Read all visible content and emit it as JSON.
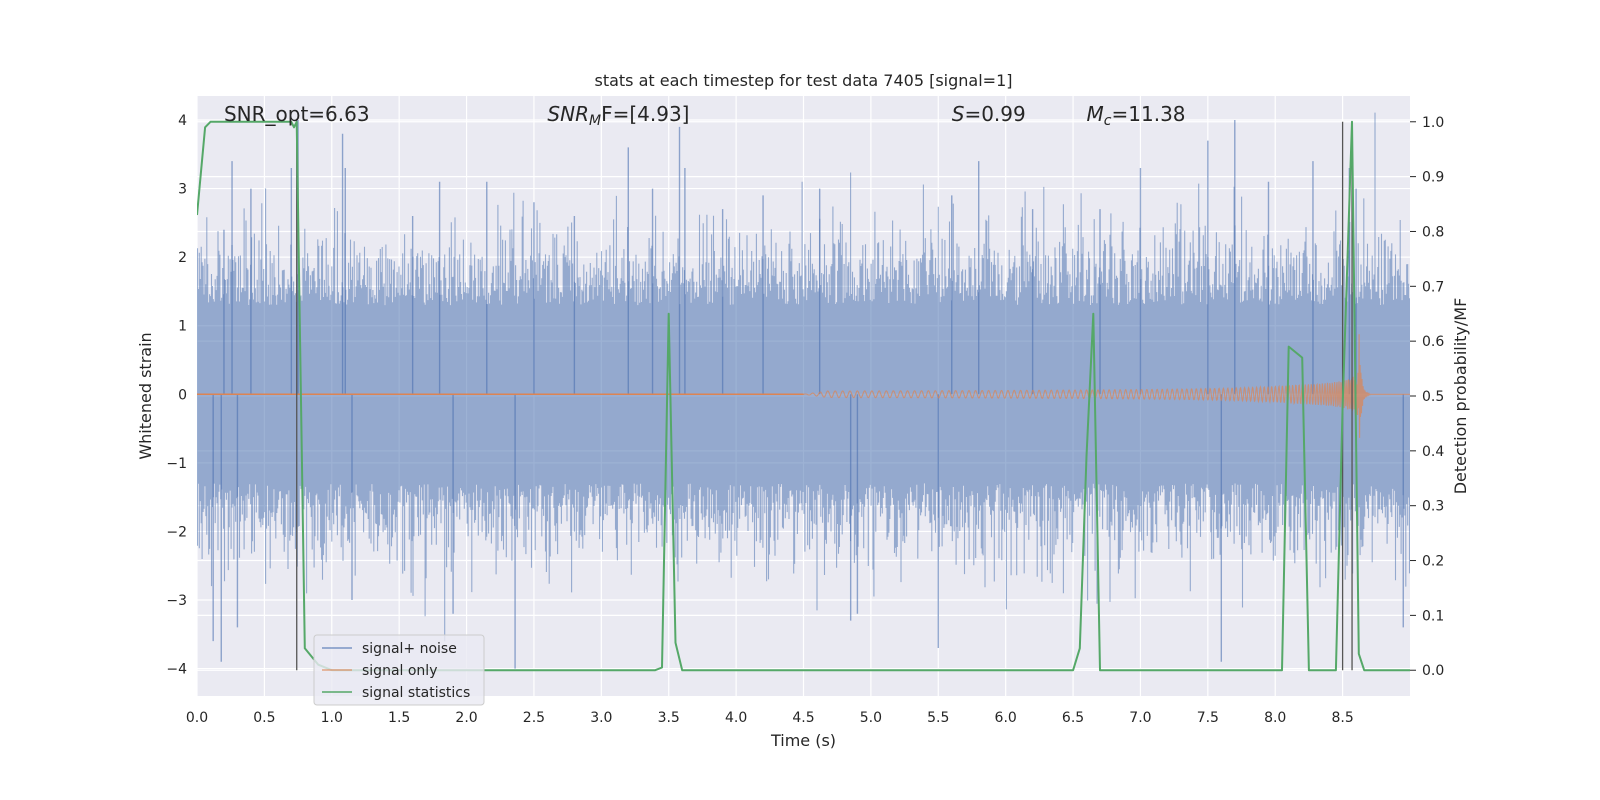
{
  "chart_data": {
    "type": "line",
    "title": "stats at each timestep for test data 7405 [signal=1]",
    "xlabel": "Time (s)",
    "ylabel": "Whitened strain",
    "y2label": "Detection probability/MF",
    "xlim": [
      0,
      9.0
    ],
    "ylim": [
      -4.4,
      4.35
    ],
    "y2lim": [
      -0.047,
      1.047
    ],
    "grid": true,
    "legend_position": "lower-left",
    "x_ticks": [
      "0.0",
      "0.5",
      "1.0",
      "1.5",
      "2.0",
      "2.5",
      "3.0",
      "3.5",
      "4.0",
      "4.5",
      "5.0",
      "5.5",
      "6.0",
      "6.5",
      "7.0",
      "7.5",
      "8.0",
      "8.5"
    ],
    "x_tick_values": [
      0,
      0.5,
      1,
      1.5,
      2,
      2.5,
      3,
      3.5,
      4,
      4.5,
      5,
      5.5,
      6,
      6.5,
      7,
      7.5,
      8,
      8.5
    ],
    "y_ticks": [
      "−4",
      "−3",
      "−2",
      "−1",
      "0",
      "1",
      "2",
      "3",
      "4"
    ],
    "y_tick_values": [
      -4,
      -3,
      -2,
      -1,
      0,
      1,
      2,
      3,
      4
    ],
    "y2_ticks": [
      "0.0",
      "0.1",
      "0.2",
      "0.3",
      "0.4",
      "0.5",
      "0.6",
      "0.7",
      "0.8",
      "0.9",
      "1.0"
    ],
    "y2_tick_values": [
      0,
      0.1,
      0.2,
      0.3,
      0.4,
      0.5,
      0.6,
      0.7,
      0.8,
      0.9,
      1.0
    ],
    "annotations": [
      {
        "id": "snr-opt",
        "x": 0.2,
        "text": "SNR_opt=6.63"
      },
      {
        "id": "snr-mf",
        "x": 2.6,
        "text_main": "SNR",
        "text_sub": "M",
        "text_rest": "F=[4.93]"
      },
      {
        "id": "s",
        "x": 5.6,
        "text_main": "S",
        "text_rest": "=0.99"
      },
      {
        "id": "mc",
        "x": 6.6,
        "text_main": "M",
        "text_sub": "c",
        "text_rest": "=11.38"
      }
    ],
    "vlines": [
      0.74,
      8.5,
      8.57
    ],
    "vline_y2_range": [
      0,
      1.0
    ],
    "series": [
      {
        "name": "signal+ noise",
        "color": "#4c72b0",
        "axis": "left",
        "kind": "noise",
        "peaks": [
          {
            "x": 0.12,
            "y": -3.6
          },
          {
            "x": 0.18,
            "y": -3.9
          },
          {
            "x": 0.2,
            "y": 2.4
          },
          {
            "x": 0.26,
            "y": 3.4
          },
          {
            "x": 0.3,
            "y": -3.4
          },
          {
            "x": 0.4,
            "y": 3.0
          },
          {
            "x": 0.7,
            "y": 3.3
          },
          {
            "x": 0.75,
            "y": 4.0
          },
          {
            "x": 1.08,
            "y": 3.8
          },
          {
            "x": 1.1,
            "y": 3.3
          },
          {
            "x": 1.15,
            "y": -3.0
          },
          {
            "x": 1.6,
            "y": 2.6
          },
          {
            "x": 1.8,
            "y": 3.1
          },
          {
            "x": 1.9,
            "y": -3.2
          },
          {
            "x": 2.15,
            "y": 3.1
          },
          {
            "x": 2.36,
            "y": -4.0
          },
          {
            "x": 2.5,
            "y": 2.8
          },
          {
            "x": 2.8,
            "y": 2.6
          },
          {
            "x": 3.2,
            "y": 3.6
          },
          {
            "x": 3.38,
            "y": 3.0
          },
          {
            "x": 3.58,
            "y": 3.9
          },
          {
            "x": 3.62,
            "y": 3.3
          },
          {
            "x": 3.9,
            "y": 2.7
          },
          {
            "x": 4.2,
            "y": 2.9
          },
          {
            "x": 4.62,
            "y": 3.0
          },
          {
            "x": 4.85,
            "y": -3.3
          },
          {
            "x": 4.9,
            "y": -3.2
          },
          {
            "x": 5.5,
            "y": -3.7
          },
          {
            "x": 5.6,
            "y": 2.9
          },
          {
            "x": 5.8,
            "y": 3.4
          },
          {
            "x": 6.2,
            "y": 2.7
          },
          {
            "x": 6.7,
            "y": 2.7
          },
          {
            "x": 7.0,
            "y": 3.3
          },
          {
            "x": 7.5,
            "y": 3.7
          },
          {
            "x": 7.6,
            "y": -3.9
          },
          {
            "x": 7.7,
            "y": 4.0
          },
          {
            "x": 7.95,
            "y": 3.1
          },
          {
            "x": 8.28,
            "y": 3.4
          },
          {
            "x": 8.55,
            "y": 3.3
          },
          {
            "x": 8.6,
            "y": 3.0
          },
          {
            "x": 8.95,
            "y": -3.4
          }
        ]
      },
      {
        "name": "signal only",
        "color": "#dd8452",
        "axis": "left",
        "kind": "chirp",
        "x_start": 4.5,
        "x_peak": 8.62,
        "x_end": 8.7,
        "peak_amplitude": 1.0
      },
      {
        "name": "signal statistics",
        "color": "#55a868",
        "axis": "right",
        "kind": "line",
        "x": [
          0.0,
          0.06,
          0.1,
          0.2,
          0.7,
          0.72,
          0.74,
          0.8,
          0.9,
          1.0,
          3.4,
          3.45,
          3.5,
          3.55,
          3.6,
          3.7,
          3.75,
          3.9,
          6.5,
          6.55,
          6.6,
          6.65,
          6.7,
          8.05,
          8.1,
          8.2,
          8.25,
          8.3,
          8.45,
          8.5,
          8.57,
          8.62,
          8.66,
          8.7,
          9.0
        ],
        "y": [
          0.83,
          0.99,
          1.0,
          1.0,
          1.0,
          0.99,
          1.0,
          0.04,
          0.01,
          0.0,
          0.0,
          0.005,
          0.65,
          0.05,
          0.0,
          0.0,
          0.0,
          0.0,
          0.0,
          0.04,
          0.39,
          0.65,
          0.0,
          0.0,
          0.59,
          0.57,
          0.0,
          0.0,
          0.0,
          0.48,
          1.0,
          0.03,
          0.0,
          0.0,
          0.0
        ]
      }
    ]
  }
}
